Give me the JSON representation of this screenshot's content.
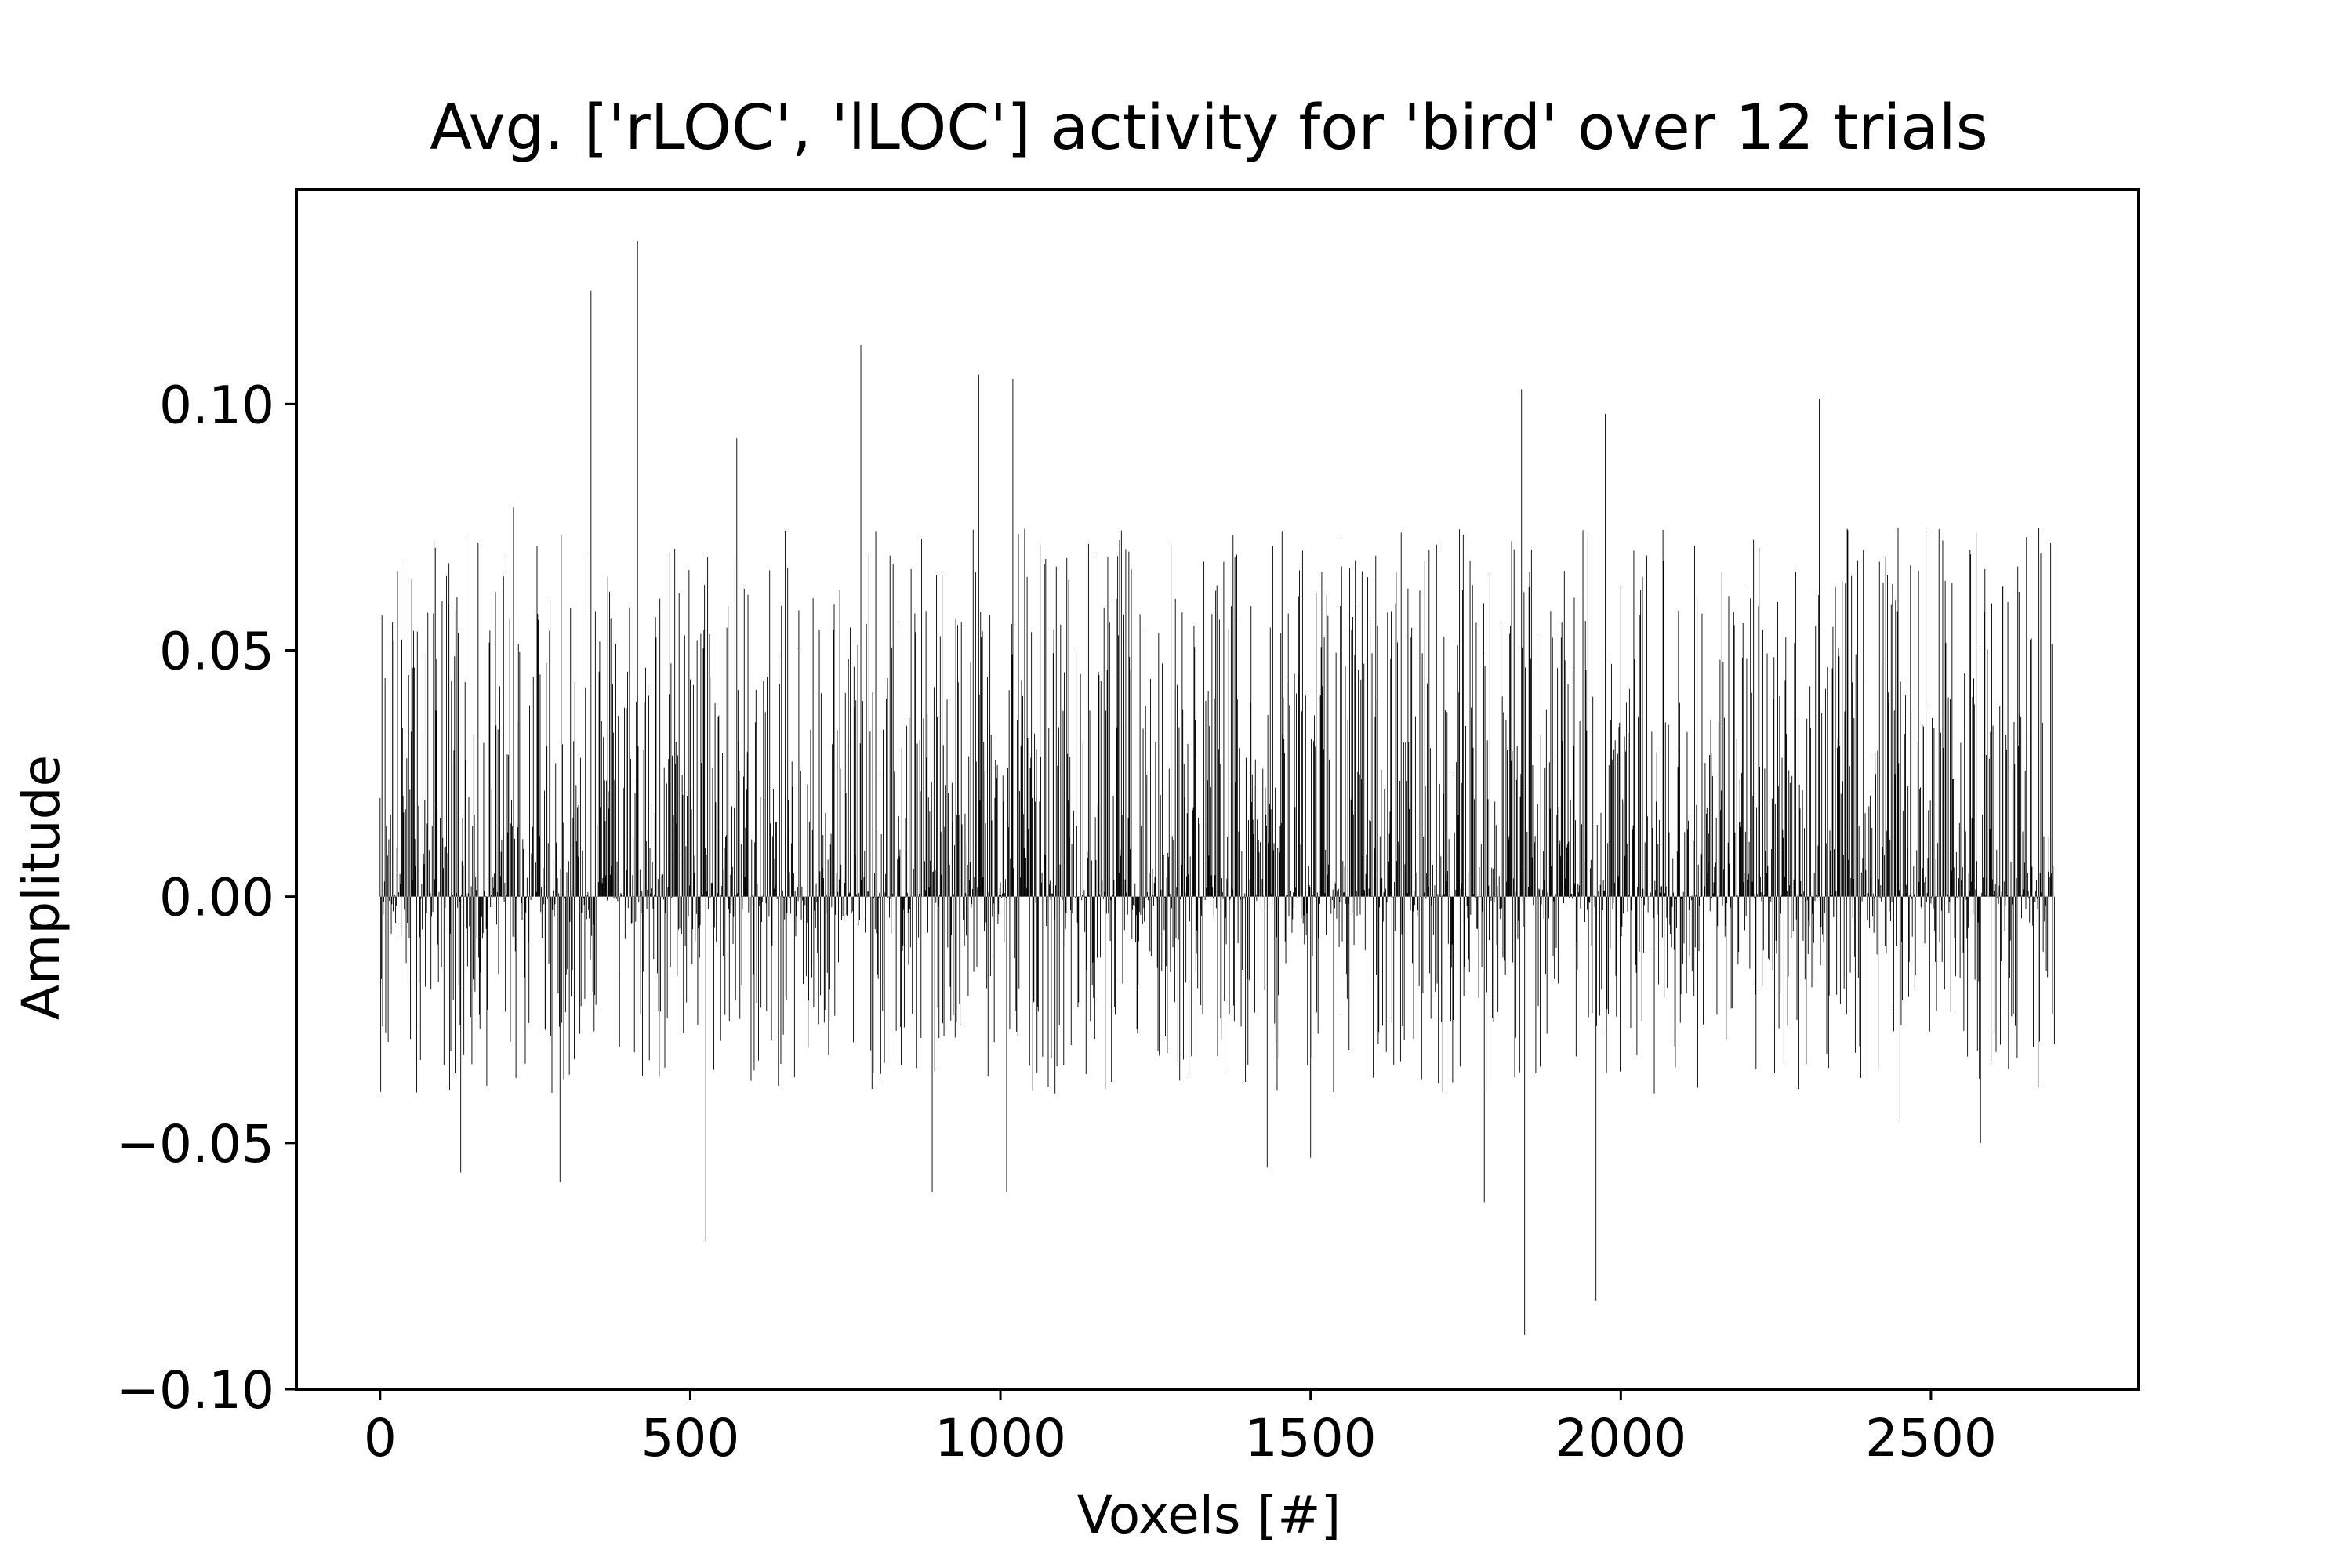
{
  "chart_data": {
    "type": "bar",
    "title": "Avg. ['rLOC', 'lLOC'] activity for 'bird' over 12 trials",
    "xlabel": "Voxels [#]",
    "ylabel": "Amplitude",
    "xlim": [
      -135,
      2835
    ],
    "ylim": [
      -0.1,
      0.1435
    ],
    "x_ticks": [
      0,
      500,
      1000,
      1500,
      2000,
      2500
    ],
    "x_tick_labels": [
      "0",
      "500",
      "1000",
      "1500",
      "2000",
      "2500"
    ],
    "y_ticks": [
      -0.1,
      -0.05,
      0.0,
      0.05,
      0.1
    ],
    "y_tick_labels": [
      "−0.10",
      "−0.05",
      "0.00",
      "0.05",
      "0.10"
    ],
    "grid": false,
    "legend": "none",
    "bar_color": "#000000",
    "n_voxels": 2700,
    "notable_values": [
      {
        "x": 0,
        "y": 0.02
      },
      {
        "x": 100,
        "y": 0.06
      },
      {
        "x": 130,
        "y": -0.056
      },
      {
        "x": 215,
        "y": 0.079
      },
      {
        "x": 290,
        "y": -0.058
      },
      {
        "x": 340,
        "y": 0.123
      },
      {
        "x": 415,
        "y": 0.133
      },
      {
        "x": 525,
        "y": -0.07
      },
      {
        "x": 575,
        "y": 0.093
      },
      {
        "x": 775,
        "y": 0.112
      },
      {
        "x": 890,
        "y": -0.06
      },
      {
        "x": 965,
        "y": 0.106
      },
      {
        "x": 1010,
        "y": -0.06
      },
      {
        "x": 1020,
        "y": 0.105
      },
      {
        "x": 1430,
        "y": -0.055
      },
      {
        "x": 1500,
        "y": -0.053
      },
      {
        "x": 1780,
        "y": -0.062
      },
      {
        "x": 1840,
        "y": 0.103
      },
      {
        "x": 1845,
        "y": -0.089
      },
      {
        "x": 1960,
        "y": -0.082
      },
      {
        "x": 1975,
        "y": 0.098
      },
      {
        "x": 2320,
        "y": 0.101
      },
      {
        "x": 2450,
        "y": -0.045
      },
      {
        "x": 2580,
        "y": -0.05
      },
      {
        "x": 2640,
        "y": 0.067
      },
      {
        "x": 2700,
        "y": -0.03
      }
    ]
  }
}
